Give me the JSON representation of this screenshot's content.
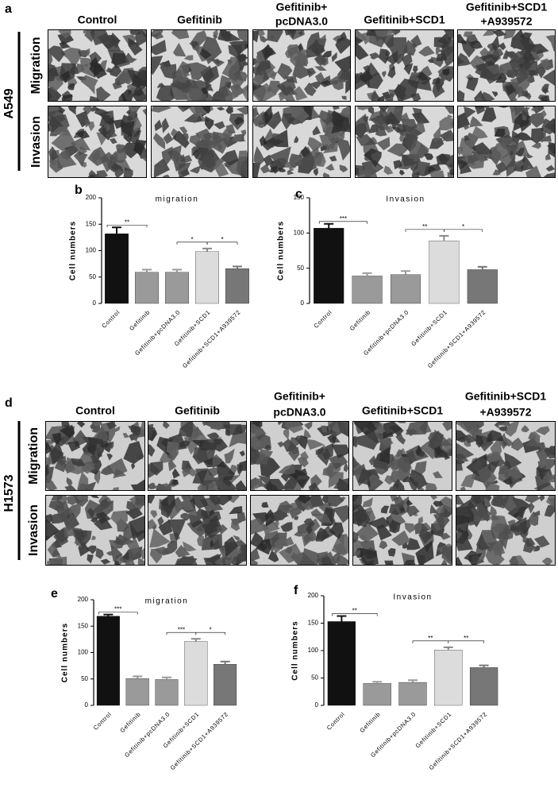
{
  "panel_a": {
    "label": "a",
    "cell_line": "A549",
    "columns": [
      [
        "Control"
      ],
      [
        "Gefitinib"
      ],
      [
        "Gefitinib+",
        "pcDNA3.0"
      ],
      [
        "Gefitinib+SCD1"
      ],
      [
        "Gefitinib+SCD1",
        "+A939572"
      ]
    ],
    "rows": [
      "Migration",
      "Invasion"
    ]
  },
  "panel_d": {
    "label": "d",
    "cell_line": "H1573",
    "columns": [
      [
        "Control"
      ],
      [
        "Gefitinib"
      ],
      [
        "Gefitinib+",
        "pcDNA3.0"
      ],
      [
        "Gefitinib+SCD1"
      ],
      [
        "Gefitinib+SCD1",
        "+A939572"
      ]
    ],
    "rows": [
      "Migration",
      "Invasion"
    ]
  },
  "chart_data": [
    {
      "type": "bar",
      "panel": "b",
      "title": "migration",
      "y_label": "Cell numbers",
      "categories": [
        "Control",
        "Gefitinib",
        "Gefitinib+pcDNA3.0",
        "Gefitinib+SCD1",
        "Gefitinib+SCD1+A939572"
      ],
      "values": [
        132,
        59,
        59,
        98,
        66
      ],
      "errors": [
        12,
        5,
        5,
        6,
        4
      ],
      "colors": [
        "#111111",
        "#9a9a9a",
        "#9a9a9a",
        "#dcdcdc",
        "#777777"
      ],
      "ylim": [
        0,
        200
      ],
      "yticks": [
        0,
        50,
        100,
        150,
        200
      ],
      "annotations": [
        "**",
        "*",
        "*"
      ]
    },
    {
      "type": "bar",
      "panel": "c",
      "title": "Invasion",
      "y_label": "Cell numbers",
      "categories": [
        "Control",
        "Gefitinib",
        "Gefitinib+pcDNA3.0",
        "Gefitinib+SCD1",
        "Gefitinib+SCD1+A939572"
      ],
      "values": [
        107,
        39,
        41,
        89,
        48
      ],
      "errors": [
        6,
        4,
        5,
        7,
        4
      ],
      "colors": [
        "#111111",
        "#9a9a9a",
        "#9a9a9a",
        "#dcdcdc",
        "#777777"
      ],
      "ylim": [
        0,
        150
      ],
      "yticks": [
        0,
        50,
        100,
        150
      ],
      "annotations": [
        "***",
        "**",
        "*"
      ]
    },
    {
      "type": "bar",
      "panel": "e",
      "title": "migration",
      "y_label": "Cell numbers",
      "categories": [
        "Control",
        "Gefitinib",
        "Gefitinib+pcDNA3.0",
        "Gefitinib+SCD1",
        "Gefitinib+SCD1+A939572"
      ],
      "values": [
        169,
        51,
        49,
        121,
        78
      ],
      "errors": [
        3,
        4,
        4,
        5,
        5
      ],
      "colors": [
        "#111111",
        "#9a9a9a",
        "#9a9a9a",
        "#dcdcdc",
        "#777777"
      ],
      "ylim": [
        0,
        200
      ],
      "yticks": [
        0,
        50,
        100,
        150,
        200
      ],
      "annotations": [
        "***",
        "***",
        "*"
      ]
    },
    {
      "type": "bar",
      "panel": "f",
      "title": "Invasion",
      "y_label": "Cell numbers",
      "categories": [
        "Control",
        "Gefitinib",
        "Gefitinib+pcDNA3.0",
        "Gefitinib+SCD1",
        "Gefitinib+SCD1+A939572"
      ],
      "values": [
        153,
        40,
        42,
        101,
        69
      ],
      "errors": [
        10,
        3,
        4,
        5,
        4
      ],
      "colors": [
        "#111111",
        "#9a9a9a",
        "#9a9a9a",
        "#dcdcdc",
        "#777777"
      ],
      "ylim": [
        0,
        200
      ],
      "yticks": [
        0,
        50,
        100,
        150,
        200
      ],
      "annotations": [
        "**",
        "**",
        "**"
      ]
    }
  ]
}
